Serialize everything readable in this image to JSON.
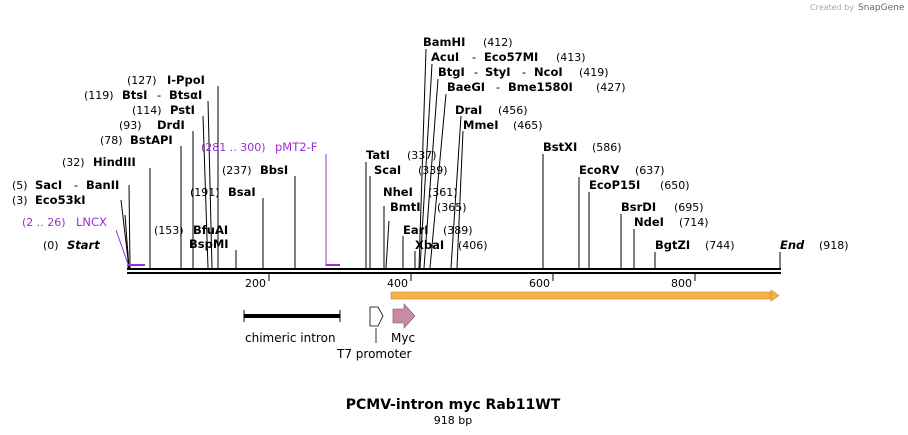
{
  "credit": {
    "prefix": "Created by",
    "brand": "SnapGene"
  },
  "title": "PCMV-intron myc Rab11WT",
  "subtitle": "918 bp",
  "sites": {
    "start_pos": "(0)",
    "start_name": "Start",
    "lncx_pos": "(2 .. 26)",
    "lncx_name": "LNCX",
    "eco53ki_pos": "(3)",
    "eco53ki_name": "Eco53kI",
    "saci_pos": "(5)",
    "saci_name": "SacI",
    "bani_name": "BanII",
    "hindiii_pos": "(32)",
    "hindiii_name": "HindIII",
    "bstapi_pos": "(78)",
    "bstapi_name": "BstAPI",
    "drdi_pos": "(93)",
    "drdi_name": "DrdI",
    "psti_pos": "(114)",
    "psti_name": "PstI",
    "btsi_pos": "(119)",
    "btsi_name": "BtsI",
    "btsai_name": "BtsαI",
    "ippoi_pos": "(127)",
    "ippoi_name": "I-PpoI",
    "bspmi_name": "BspMI",
    "bfuai_pos": "(153)",
    "bfuai_name": "BfuAI",
    "bsai_pos": "(191)",
    "bsai_name": "BsaI",
    "bbsi_pos": "(237)",
    "bbsi_name": "BbsI",
    "pmt2f_pos": "(281 .. 300)",
    "pmt2f_name": "pMT2-F",
    "tati_pos": "(337)",
    "tati_name": "TatI",
    "scai_pos": "(339)",
    "scai_name": "ScaI",
    "nhei_pos": "(361)",
    "nhei_name": "NheI",
    "bmti_pos": "(365)",
    "bmti_name": "BmtI",
    "eari_pos": "(389)",
    "eari_name": "EarI",
    "xbai_pos": "(406)",
    "xbai_name": "XbaI",
    "bamhi_pos": "(412)",
    "bamhi_name": "BamHI",
    "acui_pos": "(413)",
    "acui_name": "AcuI",
    "eco57mi_name": "Eco57MI",
    "btgi_pos": "(419)",
    "btgi_name": "BtgI",
    "styi_name": "StyI",
    "ncoi_name": "NcoI",
    "baegi_pos": "(427)",
    "baegi_name": "BaeGI",
    "bme1580i_name": "Bme1580I",
    "drai_pos": "(456)",
    "drai_name": "DraI",
    "mmei_pos": "(465)",
    "mmei_name": "MmeI",
    "bstxi_pos": "(586)",
    "bstxi_name": "BstXI",
    "ecorv_pos": "(637)",
    "ecorv_name": "EcoRV",
    "ecop15i_pos": "(650)",
    "ecop15i_name": "EcoP15I",
    "bsrdi_pos": "(695)",
    "bsrdi_name": "BsrDI",
    "ndei_pos": "(714)",
    "ndei_name": "NdeI",
    "bstzi_pos": "(744)",
    "bstzi_name": "BgtZI",
    "end_pos": "(918)",
    "end_name": "End"
  },
  "ruler": {
    "t200": "200",
    "t400": "400",
    "t600": "600",
    "t800": "800"
  },
  "features": {
    "chimeric_intron": "chimeric intron",
    "t7_promoter": "T7 promoter",
    "myc": "Myc"
  },
  "colors": {
    "primer": "#9b30d0",
    "orf_fill": "#f5b24a",
    "myc_fill": "#c98aa5"
  }
}
